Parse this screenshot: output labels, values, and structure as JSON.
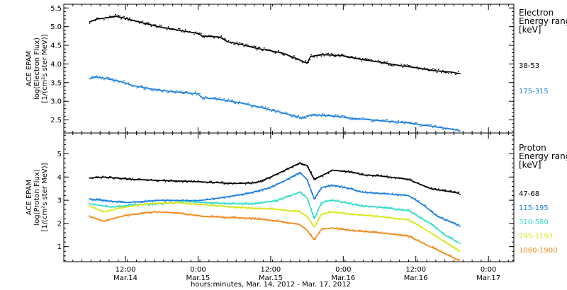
{
  "chart_data": [
    {
      "type": "scatter",
      "panel": "electron",
      "ylabel_lines": [
        "ACE EPAM",
        "log(Electron Flux)",
        "[1/(cm²s ster MeV)]"
      ],
      "legend_title_lines": [
        "Electron",
        "Energy range",
        "[keV]"
      ],
      "ylim": [
        2.15,
        5.6
      ],
      "yticks": [
        2.5,
        3.0,
        3.5,
        4.0,
        4.5,
        5.0,
        5.5
      ],
      "ytick_labels": [
        "2.5",
        "3.0",
        "3.5",
        "4.0",
        "4.5",
        "5.0",
        "5.5"
      ],
      "series": [
        {
          "name": "38-53",
          "color": "#000000",
          "points": [
            [
              0,
              5.12
            ],
            [
              0.1,
              5.2
            ],
            [
              0.25,
              5.24
            ],
            [
              0.35,
              5.28
            ],
            [
              0.5,
              5.22
            ],
            [
              0.7,
              5.12
            ],
            [
              0.95,
              5.0
            ],
            [
              1.1,
              4.95
            ],
            [
              1.3,
              4.88
            ],
            [
              1.5,
              4.82
            ],
            [
              1.55,
              4.75
            ],
            [
              1.8,
              4.72
            ],
            [
              1.9,
              4.6
            ],
            [
              2.1,
              4.52
            ],
            [
              2.3,
              4.42
            ],
            [
              2.5,
              4.35
            ],
            [
              2.65,
              4.3
            ],
            [
              2.85,
              4.15
            ],
            [
              3.0,
              4.02
            ],
            [
              3.05,
              4.2
            ],
            [
              3.2,
              4.25
            ],
            [
              3.5,
              4.22
            ],
            [
              3.75,
              4.12
            ],
            [
              4.0,
              4.05
            ],
            [
              4.3,
              3.95
            ],
            [
              4.5,
              3.9
            ],
            [
              4.75,
              3.82
            ],
            [
              5.0,
              3.78
            ],
            [
              5.1,
              3.74
            ]
          ]
        },
        {
          "name": "175-315",
          "color": "#1c7fe0",
          "points": [
            [
              0,
              3.6
            ],
            [
              0.1,
              3.65
            ],
            [
              0.2,
              3.62
            ],
            [
              0.45,
              3.52
            ],
            [
              0.6,
              3.42
            ],
            [
              0.95,
              3.3
            ],
            [
              1.2,
              3.25
            ],
            [
              1.5,
              3.2
            ],
            [
              1.55,
              3.1
            ],
            [
              1.8,
              3.05
            ],
            [
              2.1,
              2.95
            ],
            [
              2.4,
              2.82
            ],
            [
              2.6,
              2.72
            ],
            [
              2.8,
              2.62
            ],
            [
              2.95,
              2.55
            ],
            [
              3.05,
              2.63
            ],
            [
              3.3,
              2.62
            ],
            [
              3.6,
              2.55
            ],
            [
              4.0,
              2.48
            ],
            [
              4.4,
              2.42
            ],
            [
              4.75,
              2.32
            ],
            [
              5.1,
              2.22
            ]
          ]
        }
      ]
    },
    {
      "type": "scatter",
      "panel": "proton",
      "ylabel_lines": [
        "ACE EPAM",
        "log(Proton Flux)",
        "[1/(cm²s ster MeV)]"
      ],
      "legend_title_lines": [
        "Proton",
        "Energy range",
        "[keV]"
      ],
      "ylim": [
        0.35,
        5.9
      ],
      "yticks": [
        1,
        2,
        3,
        4,
        5
      ],
      "ytick_labels": [
        "1",
        "2",
        "3",
        "4",
        "5"
      ],
      "series": [
        {
          "name": "47-68",
          "color": "#000000",
          "points": [
            [
              0,
              3.95
            ],
            [
              0.2,
              4.0
            ],
            [
              0.6,
              3.9
            ],
            [
              1.0,
              3.85
            ],
            [
              1.5,
              3.8
            ],
            [
              2.0,
              3.72
            ],
            [
              2.3,
              3.75
            ],
            [
              2.5,
              4.0
            ],
            [
              2.7,
              4.3
            ],
            [
              2.9,
              4.6
            ],
            [
              3.0,
              4.5
            ],
            [
              3.1,
              3.9
            ],
            [
              3.2,
              4.05
            ],
            [
              3.35,
              4.3
            ],
            [
              3.5,
              4.25
            ],
            [
              3.65,
              4.2
            ],
            [
              3.75,
              4.1
            ],
            [
              4.0,
              4.05
            ],
            [
              4.4,
              3.9
            ],
            [
              4.7,
              3.5
            ],
            [
              5.1,
              3.3
            ]
          ]
        },
        {
          "name": "115-195",
          "color": "#1c7fe0",
          "points": [
            [
              0,
              3.05
            ],
            [
              0.5,
              2.9
            ],
            [
              1.0,
              3.0
            ],
            [
              1.5,
              2.98
            ],
            [
              1.8,
              3.1
            ],
            [
              2.2,
              3.3
            ],
            [
              2.5,
              3.55
            ],
            [
              2.7,
              3.85
            ],
            [
              2.9,
              4.2
            ],
            [
              3.0,
              3.9
            ],
            [
              3.1,
              3.05
            ],
            [
              3.2,
              3.55
            ],
            [
              3.35,
              3.65
            ],
            [
              3.6,
              3.5
            ],
            [
              3.75,
              3.35
            ],
            [
              4.0,
              3.3
            ],
            [
              4.4,
              3.2
            ],
            [
              4.6,
              2.8
            ],
            [
              4.8,
              2.3
            ],
            [
              5.1,
              1.9
            ]
          ]
        },
        {
          "name": "310-580",
          "color": "#33dcc8",
          "points": [
            [
              0,
              2.85
            ],
            [
              0.3,
              2.7
            ],
            [
              0.6,
              2.8
            ],
            [
              1.0,
              2.85
            ],
            [
              1.3,
              2.95
            ],
            [
              1.6,
              2.9
            ],
            [
              2.0,
              2.85
            ],
            [
              2.3,
              2.85
            ],
            [
              2.6,
              3.0
            ],
            [
              2.9,
              3.35
            ],
            [
              3.0,
              3.1
            ],
            [
              3.1,
              2.2
            ],
            [
              3.2,
              2.9
            ],
            [
              3.35,
              3.0
            ],
            [
              3.6,
              2.85
            ],
            [
              3.75,
              2.75
            ],
            [
              4.0,
              2.7
            ],
            [
              4.4,
              2.55
            ],
            [
              4.7,
              2.0
            ],
            [
              4.9,
              1.5
            ],
            [
              5.1,
              1.15
            ]
          ]
        },
        {
          "name": "795-1193",
          "color": "#d8e81c",
          "points": [
            [
              0,
              2.75
            ],
            [
              0.2,
              2.5
            ],
            [
              0.4,
              2.65
            ],
            [
              0.8,
              2.85
            ],
            [
              1.2,
              2.9
            ],
            [
              1.6,
              2.8
            ],
            [
              2.0,
              2.7
            ],
            [
              2.3,
              2.65
            ],
            [
              2.6,
              2.6
            ],
            [
              2.9,
              2.5
            ],
            [
              3.0,
              2.3
            ],
            [
              3.1,
              1.85
            ],
            [
              3.2,
              2.4
            ],
            [
              3.35,
              2.5
            ],
            [
              3.6,
              2.4
            ],
            [
              3.8,
              2.35
            ],
            [
              4.0,
              2.3
            ],
            [
              4.4,
              2.15
            ],
            [
              4.6,
              1.8
            ],
            [
              4.9,
              1.2
            ],
            [
              5.1,
              0.8
            ]
          ]
        },
        {
          "name": "1060-1900",
          "color": "#f08a1c",
          "points": [
            [
              0,
              2.3
            ],
            [
              0.2,
              2.1
            ],
            [
              0.5,
              2.35
            ],
            [
              0.9,
              2.5
            ],
            [
              1.2,
              2.45
            ],
            [
              1.6,
              2.3
            ],
            [
              2.0,
              2.25
            ],
            [
              2.3,
              2.2
            ],
            [
              2.6,
              2.1
            ],
            [
              2.9,
              1.95
            ],
            [
              3.0,
              1.7
            ],
            [
              3.1,
              1.3
            ],
            [
              3.2,
              1.75
            ],
            [
              3.35,
              1.8
            ],
            [
              3.6,
              1.7
            ],
            [
              3.8,
              1.65
            ],
            [
              4.0,
              1.6
            ],
            [
              4.4,
              1.45
            ],
            [
              4.6,
              1.15
            ],
            [
              4.9,
              0.7
            ],
            [
              5.1,
              0.4
            ]
          ]
        }
      ]
    }
  ],
  "x_axis": {
    "xlim": [
      -0.35,
      5.85
    ],
    "ticks": [
      {
        "x": 0.5,
        "top": "12:00",
        "bottom": "Mar.14"
      },
      {
        "x": 1.5,
        "top": "0:00",
        "bottom": "Mar.15"
      },
      {
        "x": 2.5,
        "top": "12:00",
        "bottom": "Mar.15"
      },
      {
        "x": 3.5,
        "top": "0:00",
        "bottom": "Mar.16"
      },
      {
        "x": 4.5,
        "top": "12:00",
        "bottom": "Mar.16"
      },
      {
        "x": 5.5,
        "top": "0:00",
        "bottom": "Mar.17"
      }
    ],
    "minor_step": 0.125,
    "title": "hours:minutes, Mar. 14, 2012 - Mar. 17, 2012"
  }
}
